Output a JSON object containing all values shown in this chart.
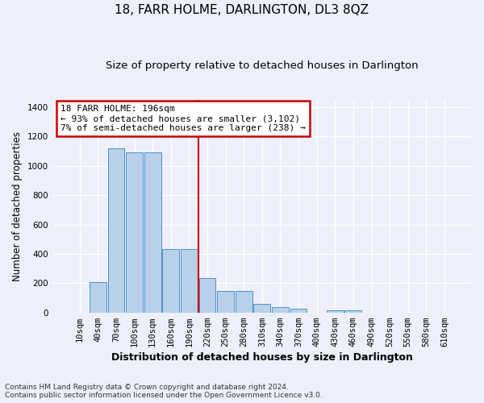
{
  "title": "18, FARR HOLME, DARLINGTON, DL3 8QZ",
  "subtitle": "Size of property relative to detached houses in Darlington",
  "xlabel": "Distribution of detached houses by size in Darlington",
  "ylabel": "Number of detached properties",
  "footnote1": "Contains HM Land Registry data © Crown copyright and database right 2024.",
  "footnote2": "Contains public sector information licensed under the Open Government Licence v3.0.",
  "bar_labels": [
    "10sqm",
    "40sqm",
    "70sqm",
    "100sqm",
    "130sqm",
    "160sqm",
    "190sqm",
    "220sqm",
    "250sqm",
    "280sqm",
    "310sqm",
    "340sqm",
    "370sqm",
    "400sqm",
    "430sqm",
    "460sqm",
    "490sqm",
    "520sqm",
    "550sqm",
    "580sqm",
    "610sqm"
  ],
  "bar_values": [
    0,
    207,
    1120,
    1090,
    1090,
    435,
    435,
    233,
    147,
    147,
    57,
    38,
    28,
    0,
    15,
    15,
    0,
    0,
    0,
    0,
    0
  ],
  "bar_color": "#b8d0ea",
  "bar_edge_color": "#5090c8",
  "vline_x_index": 7,
  "vline_color": "#cc0000",
  "annotation_text": "18 FARR HOLME: 196sqm\n← 93% of detached houses are smaller (3,102)\n7% of semi-detached houses are larger (238) →",
  "annotation_box_color": "#cc0000",
  "ylim": [
    0,
    1450
  ],
  "yticks": [
    0,
    200,
    400,
    600,
    800,
    1000,
    1200,
    1400
  ],
  "background_color": "#edf0fa",
  "grid_color": "#ffffff",
  "title_fontsize": 11,
  "subtitle_fontsize": 9.5,
  "xlabel_fontsize": 9,
  "ylabel_fontsize": 8.5,
  "tick_fontsize": 7.5,
  "annot_fontsize": 8,
  "footnote_fontsize": 6.5
}
